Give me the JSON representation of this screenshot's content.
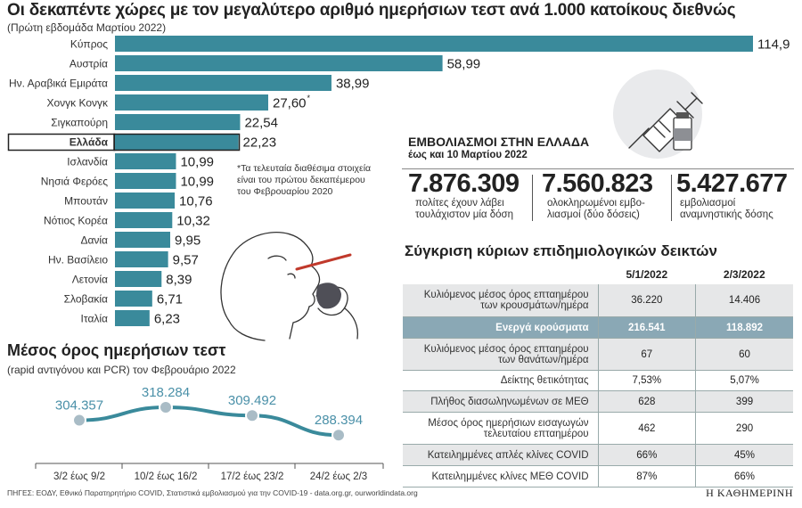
{
  "chart_data": [
    {
      "type": "bar",
      "orientation": "horizontal",
      "title": "Οι δεκαπέντε χώρες με τον μεγαλύτερο αριθμό ημερήσιων τεστ ανά 1.000 κατοίκους διεθνώς",
      "subtitle": "(Πρώτη εβδομάδα Μαρτίου 2022)",
      "categories": [
        "Κύπρος",
        "Αυστρία",
        "Ην. Αραβικά Εμιράτα",
        "Χονγκ Κονγκ",
        "Σιγκαπούρη",
        "Ελλάδα",
        "Ισλανδία",
        "Νησιά Φερόες",
        "Μπουτάν",
        "Νότιος Κορέα",
        "Δανία",
        "Ην. Βασίλειο",
        "Λετονία",
        "Σλοβακία",
        "Ιταλία"
      ],
      "values": [
        114.9,
        58.99,
        38.99,
        27.6,
        22.54,
        22.23,
        10.99,
        10.99,
        10.76,
        10.32,
        9.95,
        9.57,
        8.39,
        6.71,
        6.23
      ],
      "value_labels": [
        "114,9",
        "58,99",
        "38,99",
        "27,60",
        "22,54",
        "22,23",
        "10,99",
        "10,99",
        "10,76",
        "10,32",
        "9,95",
        "9,57",
        "8,39",
        "6,71",
        "6,23"
      ],
      "highlight": "Ελλάδα",
      "asterisk": "Χονγκ Κονγκ",
      "xlim": [
        0,
        114.9
      ],
      "footnote": "*Τα τελευταία διαθέσιμα στοιχεία είναι του πρώτου δεκαπέμερου του Φεβρουαρίου 2020",
      "color": "#3a8a9b"
    },
    {
      "type": "line",
      "title": "Μέσος όρος ημερήσιων τεστ",
      "subtitle": "(rapid αντιγόνου και PCR) τον Φεβρουάριο 2022",
      "categories": [
        "3/2 έως 9/2",
        "10/2 έως 16/2",
        "17/2 έως 23/2",
        "24/2 έως 2/3"
      ],
      "values": [
        304357,
        318284,
        309492,
        288394
      ],
      "value_labels": [
        "304.357",
        "318.284",
        "309.492",
        "288.394"
      ],
      "line_color": "#3a8a9b",
      "label_color": "#4a90a8",
      "marker_color": "#a9bcc6"
    },
    {
      "type": "table",
      "title": "Σύγκριση κύριων επιδημιολογικών δεικτών",
      "columns": [
        "5/1/2022",
        "2/3/2022"
      ],
      "rows": [
        {
          "label": "Κυλιόμενος μέσος όρος επταημέρου των κρουσμάτων/ημέρα",
          "values": [
            "36.220",
            "14.406"
          ]
        },
        {
          "label": "Ενεργά κρούσματα",
          "values": [
            "216.541",
            "118.892"
          ],
          "highlight": true
        },
        {
          "label": "Κυλιόμενος μέσος όρος επταημέρου των θανάτων/ημέρα",
          "values": [
            "67",
            "60"
          ]
        },
        {
          "label": "Δείκτης θετικότητας",
          "values": [
            "7,53%",
            "5,07%"
          ]
        },
        {
          "label": "Πλήθος διασωληνωμένων σε ΜΕΘ",
          "values": [
            "628",
            "399"
          ]
        },
        {
          "label": "Μέσος όρος ημερήσιων εισαγωγών τελευταίου επταημέρου",
          "values": [
            "462",
            "290"
          ]
        },
        {
          "label": "Κατειλημμένες απλές κλίνες COVID",
          "values": [
            "66%",
            "45%"
          ]
        },
        {
          "label": "Κατειλημμένες κλίνες ΜΕΘ COVID",
          "values": [
            "87%",
            "66%"
          ]
        }
      ]
    }
  ],
  "vaccination": {
    "title": "ΕΜΒΟΛΙΑΣΜΟΙ ΣΤΗΝ ΕΛΛΑΔΑ",
    "subtitle": "έως και 10 Μαρτίου 2022",
    "stats": [
      {
        "value": "7.876.309",
        "line1": "πολίτες έχουν λάβει",
        "line2": "τουλάχιστον μία δόση"
      },
      {
        "value": "7.560.823",
        "line1": "ολοκληρωμένοι εμβο-",
        "line2": "λιασμοί (δύο δόσεις)"
      },
      {
        "value": "5.427.677",
        "line1": "εμβολιασμοί",
        "line2": "αναμνηστικής δόσης"
      }
    ]
  },
  "sources": "ΠΗΓΕΣ: ΕΟΔΥ, Εθνικό Παρατηρητήριο COVID, Στατιστικά εμβολιασμού για την COVID-19 - data.org.gr, ourworldindata.org",
  "brand": "Η ΚΑΘΗΜΕΡΙΝΗ"
}
